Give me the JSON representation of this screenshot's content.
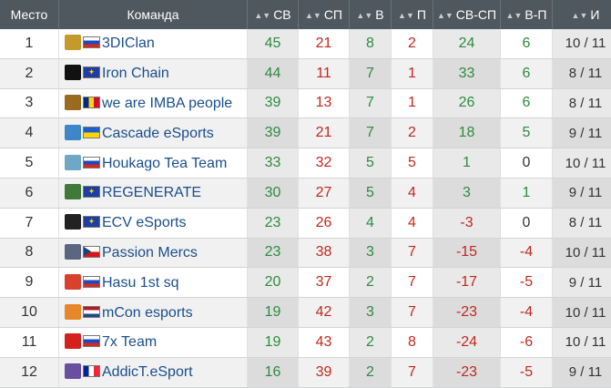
{
  "columns": [
    {
      "label": "Место",
      "sortable": false
    },
    {
      "label": "Команда",
      "sortable": false
    },
    {
      "label": "СВ",
      "sortable": true
    },
    {
      "label": "СП",
      "sortable": true
    },
    {
      "label": "В",
      "sortable": true
    },
    {
      "label": "П",
      "sortable": true
    },
    {
      "label": "СВ-СП",
      "sortable": true
    },
    {
      "label": "В-П",
      "sortable": true
    },
    {
      "label": "И",
      "sortable": true
    }
  ],
  "sort_icon": "sort-arrows-icon",
  "colors": {
    "header_bg": "#50585f",
    "team_link": "#1a4e8b",
    "positive": "#2e8b3e",
    "negative": "#c0281e"
  },
  "rows": [
    {
      "place": "1",
      "team": "3DIClan",
      "logo": "3dclan-logo",
      "logo_color": "#c49a2a",
      "flag": "ru",
      "sv": "45",
      "sp": "21",
      "w": "8",
      "l": "2",
      "diff": "24",
      "wl": "6",
      "games": "10 / 11"
    },
    {
      "place": "2",
      "team": "Iron Chain",
      "logo": "iron-chain-logo",
      "logo_color": "#111111",
      "flag": "eu",
      "sv": "44",
      "sp": "11",
      "w": "7",
      "l": "1",
      "diff": "33",
      "wl": "6",
      "games": "8 / 11"
    },
    {
      "place": "3",
      "team": "we are IMBA people",
      "logo": "imba-logo",
      "logo_color": "#9a6a1e",
      "flag": "ro",
      "sv": "39",
      "sp": "13",
      "w": "7",
      "l": "1",
      "diff": "26",
      "wl": "6",
      "games": "8 / 11"
    },
    {
      "place": "4",
      "team": "Cascade eSports",
      "logo": "cascade-logo",
      "logo_color": "#3d86c9",
      "flag": "ua",
      "sv": "39",
      "sp": "21",
      "w": "7",
      "l": "2",
      "diff": "18",
      "wl": "5",
      "games": "9 / 11"
    },
    {
      "place": "5",
      "team": "Houkago Tea Team",
      "logo": "houkago-logo",
      "logo_color": "#6fa8c6",
      "flag": "ru",
      "sv": "33",
      "sp": "32",
      "w": "5",
      "l": "5",
      "diff": "1",
      "wl": "0",
      "games": "10 / 11"
    },
    {
      "place": "6",
      "team": "REGENERATE",
      "logo": "regenerate-logo",
      "logo_color": "#3f7a3a",
      "flag": "eu",
      "sv": "30",
      "sp": "27",
      "w": "5",
      "l": "4",
      "diff": "3",
      "wl": "1",
      "games": "9 / 11"
    },
    {
      "place": "7",
      "team": "ECV eSports",
      "logo": "ecv-logo",
      "logo_color": "#222222",
      "flag": "eu",
      "sv": "23",
      "sp": "26",
      "w": "4",
      "l": "4",
      "diff": "-3",
      "wl": "0",
      "games": "8 / 11"
    },
    {
      "place": "8",
      "team": "Passion Mercs",
      "logo": "passion-mercs-logo",
      "logo_color": "#5b6680",
      "flag": "cz",
      "sv": "23",
      "sp": "38",
      "w": "3",
      "l": "7",
      "diff": "-15",
      "wl": "-4",
      "games": "10 / 11"
    },
    {
      "place": "9",
      "team": "Hasu 1st sq",
      "logo": "hasu-logo",
      "logo_color": "#d9412f",
      "flag": "ru",
      "sv": "20",
      "sp": "37",
      "w": "2",
      "l": "7",
      "diff": "-17",
      "wl": "-5",
      "games": "9 / 11"
    },
    {
      "place": "10",
      "team": "mCon esports",
      "logo": "mcon-logo",
      "logo_color": "#e8862a",
      "flag": "nl",
      "sv": "19",
      "sp": "42",
      "w": "3",
      "l": "7",
      "diff": "-23",
      "wl": "-4",
      "games": "10 / 11"
    },
    {
      "place": "11",
      "team": "7x Team",
      "logo": "7x-logo",
      "logo_color": "#d4211e",
      "flag": "ru",
      "sv": "19",
      "sp": "43",
      "w": "2",
      "l": "8",
      "diff": "-24",
      "wl": "-6",
      "games": "10 / 11"
    },
    {
      "place": "12",
      "team": "AddicT.eSport",
      "logo": "addict-logo",
      "logo_color": "#6a4fa0",
      "flag": "fr",
      "sv": "16",
      "sp": "39",
      "w": "2",
      "l": "7",
      "diff": "-23",
      "wl": "-5",
      "games": "9 / 11"
    }
  ]
}
